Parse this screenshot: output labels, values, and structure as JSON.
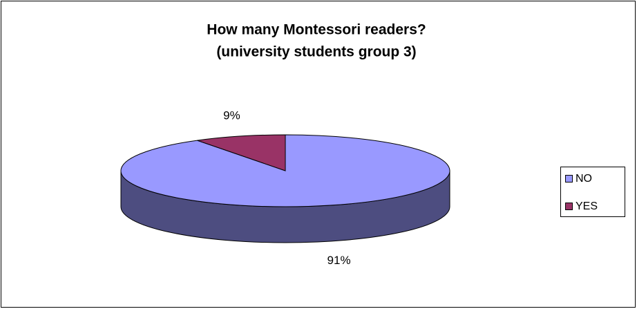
{
  "chart_data": {
    "type": "pie3d",
    "title": [
      "How many Montessori readers?",
      "(university students group 3)"
    ],
    "categories": [
      "NO",
      "YES"
    ],
    "values": [
      91,
      9
    ],
    "value_labels": [
      "91%",
      "9%"
    ],
    "colors": [
      "#9999ff",
      "#993366"
    ],
    "legend": "right"
  }
}
